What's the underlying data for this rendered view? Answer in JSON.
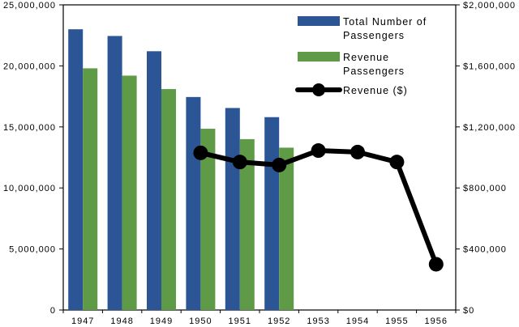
{
  "chart_data": {
    "type": "bar",
    "categories": [
      "1947",
      "1948",
      "1949",
      "1950",
      "1951",
      "1952",
      "1953",
      "1954",
      "1955",
      "1956"
    ],
    "series": [
      {
        "name": "Total Number of Passengers",
        "type": "bar",
        "axis": "left",
        "color": "#2c5596",
        "values": [
          23000000,
          22450000,
          21200000,
          17450000,
          16550000,
          15800000,
          null,
          null,
          null,
          null
        ]
      },
      {
        "name": "Revenue Passengers",
        "type": "bar",
        "axis": "left",
        "color": "#5f9a47",
        "values": [
          19800000,
          19200000,
          18100000,
          14850000,
          14000000,
          13300000,
          null,
          null,
          null,
          null
        ]
      },
      {
        "name": "Revenue ($)",
        "type": "line",
        "axis": "right",
        "color": "#000000",
        "values": [
          null,
          null,
          null,
          1030000,
          970000,
          950000,
          1045000,
          1035000,
          970000,
          300000
        ]
      }
    ],
    "legend": {
      "placement": "top-right",
      "labels": {
        "total": [
          "Total Number of",
          "Passengers"
        ],
        "revenue_passengers": [
          "Revenue",
          "Passengers"
        ],
        "revenue": [
          "Revenue ($)"
        ]
      }
    },
    "left_axis": {
      "ylim": [
        0,
        25000000
      ],
      "ticks": [
        0,
        5000000,
        10000000,
        15000000,
        20000000,
        25000000
      ],
      "tick_labels": [
        "0",
        "5,000,000",
        "10,000,000",
        "15,000,000",
        "20,000,000",
        "25,000,000"
      ]
    },
    "right_axis": {
      "ylim": [
        0,
        2000000
      ],
      "ticks": [
        0,
        400000,
        800000,
        1200000,
        1600000,
        2000000
      ],
      "tick_labels": [
        "$0",
        "$400,000",
        "$800,000",
        "$1,200,000",
        "$1,600,000",
        "$2,000,000"
      ]
    },
    "grid": false
  }
}
